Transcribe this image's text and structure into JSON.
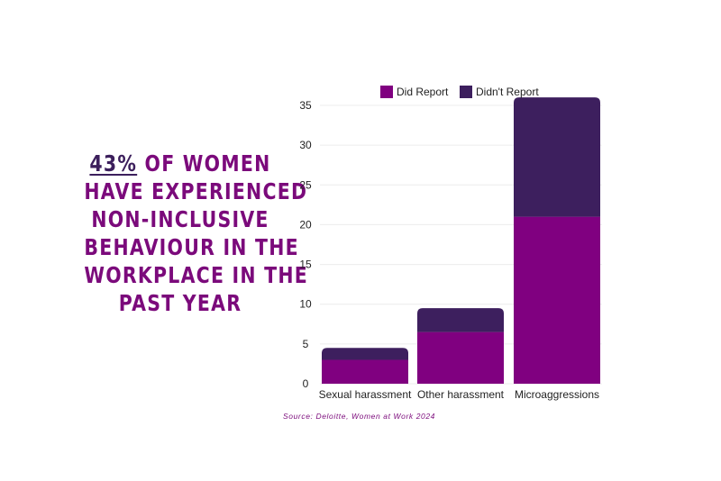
{
  "headline": {
    "stat": "43%",
    "line1_rest": " OF WOMEN",
    "line2": "HAVE EXPERIENCED",
    "line3": "NON-INCLUSIVE",
    "line4": "BEHAVIOUR IN THE",
    "line5": "WORKPLACE IN THE",
    "line6": "PAST YEAR"
  },
  "source": "Source: Deloitte, Women at Work 2024",
  "colors": {
    "did_report": "#800080",
    "didnt_report": "#3d1f5e",
    "headline": "#7b0a7b"
  },
  "chart_data": {
    "type": "bar",
    "stacked": true,
    "categories": [
      "Sexual harassment",
      "Other harassment",
      "Microaggressions"
    ],
    "series": [
      {
        "name": "Did Report",
        "values": [
          3,
          6.5,
          21
        ]
      },
      {
        "name": "Didn't Report",
        "values": [
          1.5,
          3,
          15
        ]
      }
    ],
    "yticks": [
      "0",
      "5",
      "10",
      "15",
      "20",
      "25",
      "30",
      "35"
    ],
    "ylim": [
      0,
      35
    ],
    "legend": "top",
    "grid": true
  }
}
